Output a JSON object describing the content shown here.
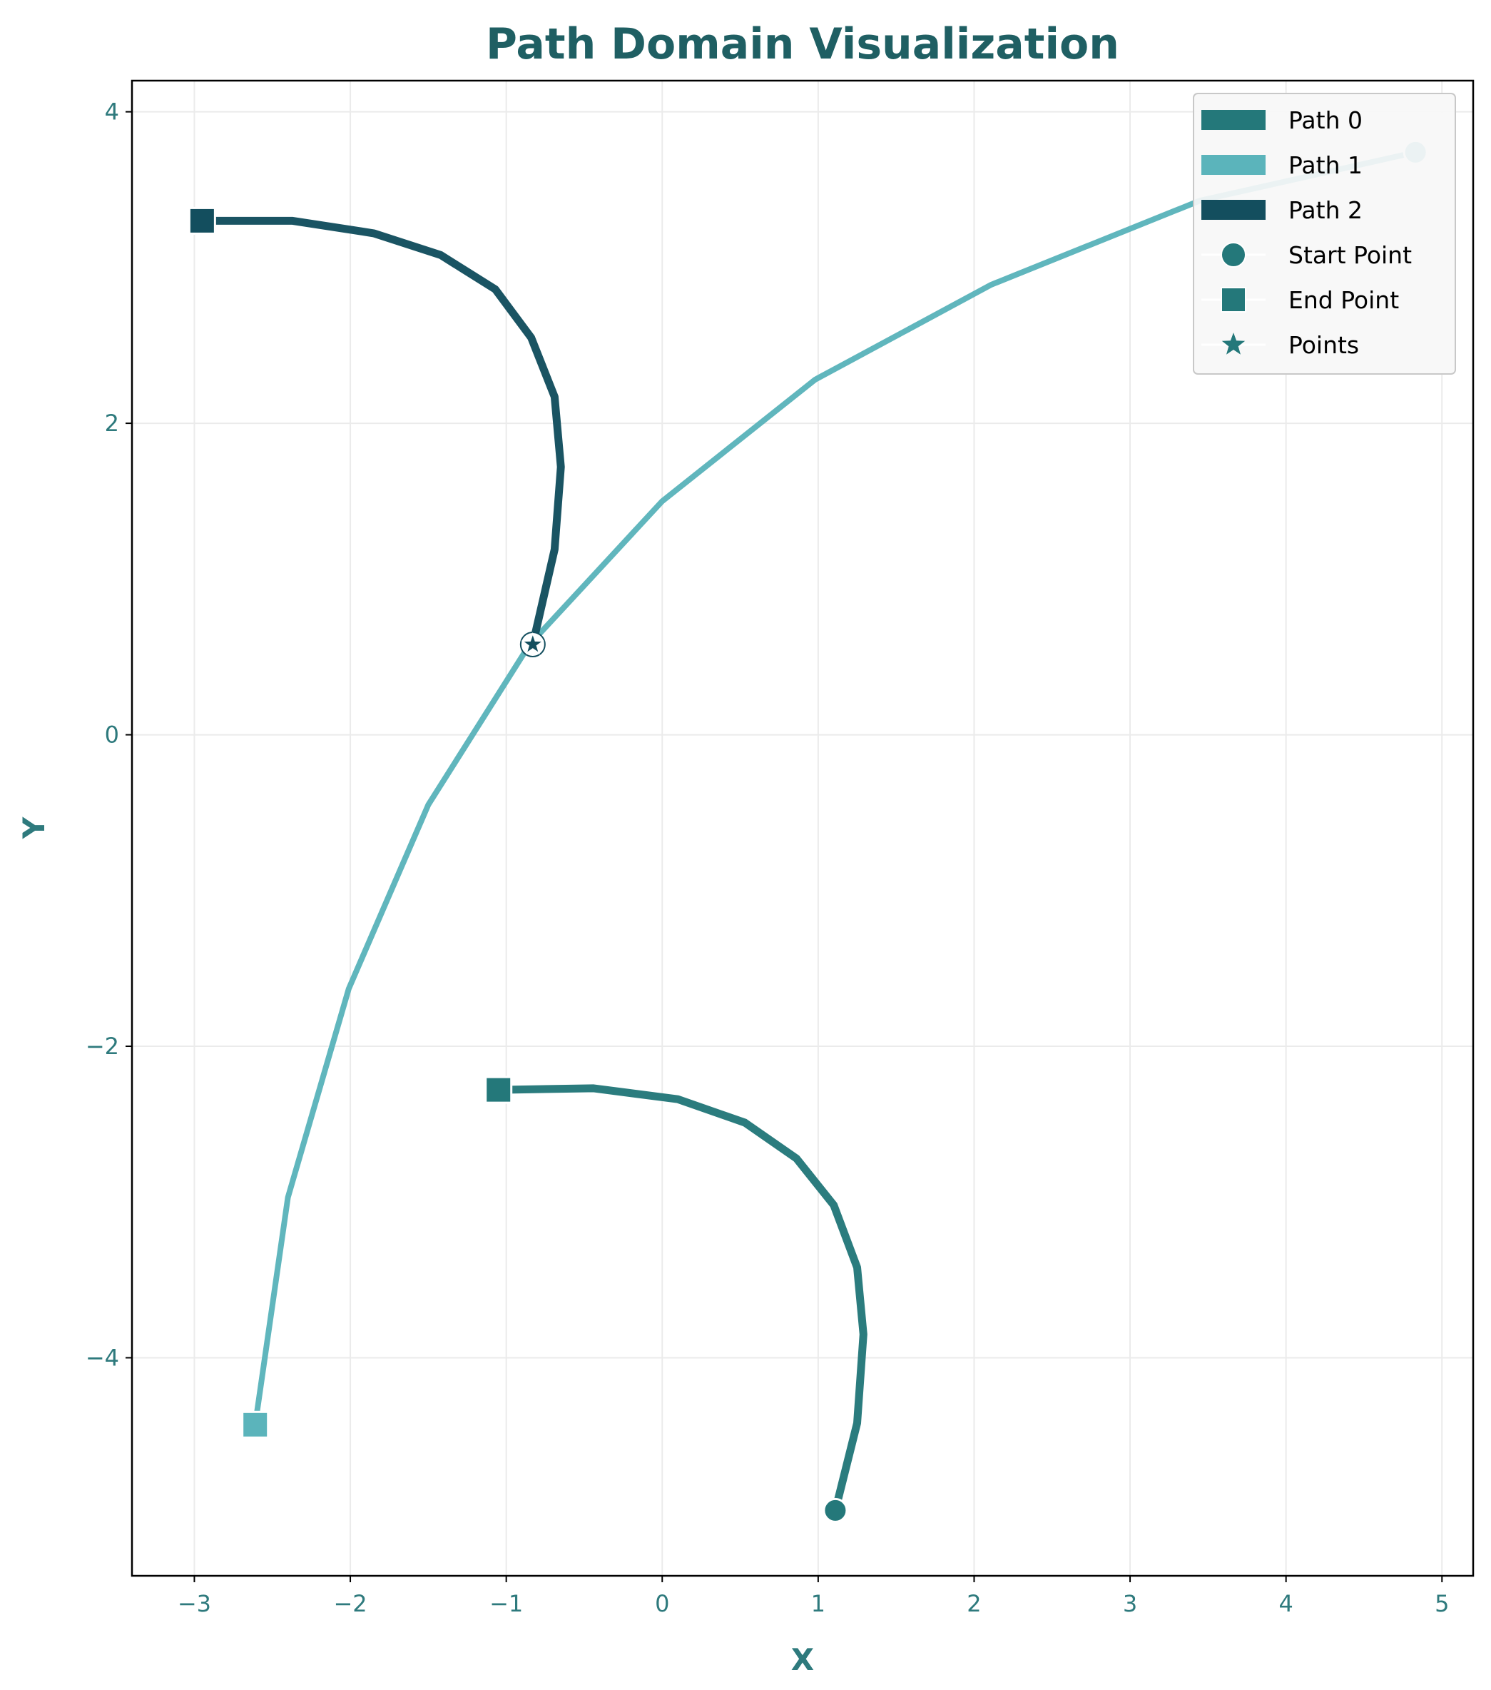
{
  "colors": {
    "title": "#1f5f63",
    "axis_text": "#2e7a7d",
    "grid": "#ebebeb",
    "frame": "#000000",
    "path0": "#24787a",
    "path1": "#5bb4bb",
    "path2": "#134e5e",
    "legend_bg": "#f7f7f7",
    "legend_border": "#c8c8c8"
  },
  "chart_data": {
    "type": "line",
    "title": "Path Domain Visualization",
    "xlabel": "X",
    "ylabel": "Y",
    "xlim": [
      -3.4,
      5.2
    ],
    "ylim": [
      -5.4,
      4.2
    ],
    "xticks": [
      -3,
      -2,
      -1,
      0,
      1,
      2,
      3,
      4,
      5
    ],
    "yticks": [
      -4,
      -2,
      0,
      2,
      4
    ],
    "grid": true,
    "legend_position": "top-right",
    "series": [
      {
        "name": "Path 0",
        "color": "#24787a",
        "x": [
          1.11,
          1.25,
          1.29,
          1.25,
          1.1,
          0.86,
          0.53,
          0.1,
          -0.44,
          -1.05
        ],
        "y": [
          -4.98,
          -4.42,
          -3.85,
          -3.42,
          -3.02,
          -2.72,
          -2.49,
          -2.34,
          -2.27,
          -2.28
        ]
      },
      {
        "name": "Path 1",
        "color": "#5bb4bb",
        "x": [
          4.83,
          3.45,
          2.11,
          0.98,
          0.0,
          -0.85,
          -1.5,
          -2.01,
          -2.4,
          -2.61
        ],
        "y": [
          3.74,
          3.43,
          2.89,
          2.28,
          1.5,
          0.58,
          -0.45,
          -1.63,
          -2.97,
          -4.43
        ]
      },
      {
        "name": "Path 2",
        "color": "#134e5e",
        "x": [
          -0.83,
          -0.69,
          -0.65,
          -0.69,
          -0.84,
          -1.07,
          -1.42,
          -1.85,
          -2.37,
          -2.95
        ],
        "y": [
          0.58,
          1.19,
          1.72,
          2.17,
          2.55,
          2.86,
          3.08,
          3.22,
          3.3,
          3.3
        ]
      }
    ],
    "intersection_points": [
      {
        "x": -0.83,
        "y": 0.58
      }
    ],
    "legend": {
      "entries": [
        {
          "label": "Path 0",
          "marker": "patch",
          "color": "#24787a"
        },
        {
          "label": "Path 1",
          "marker": "patch",
          "color": "#5bb4bb"
        },
        {
          "label": "Path 2",
          "marker": "patch",
          "color": "#134e5e"
        },
        {
          "label": "Start Point",
          "marker": "circle",
          "color": "#24787a"
        },
        {
          "label": "End Point",
          "marker": "square",
          "color": "#24787a"
        },
        {
          "label": "Points",
          "marker": "star",
          "color": "#24787a"
        }
      ]
    }
  }
}
